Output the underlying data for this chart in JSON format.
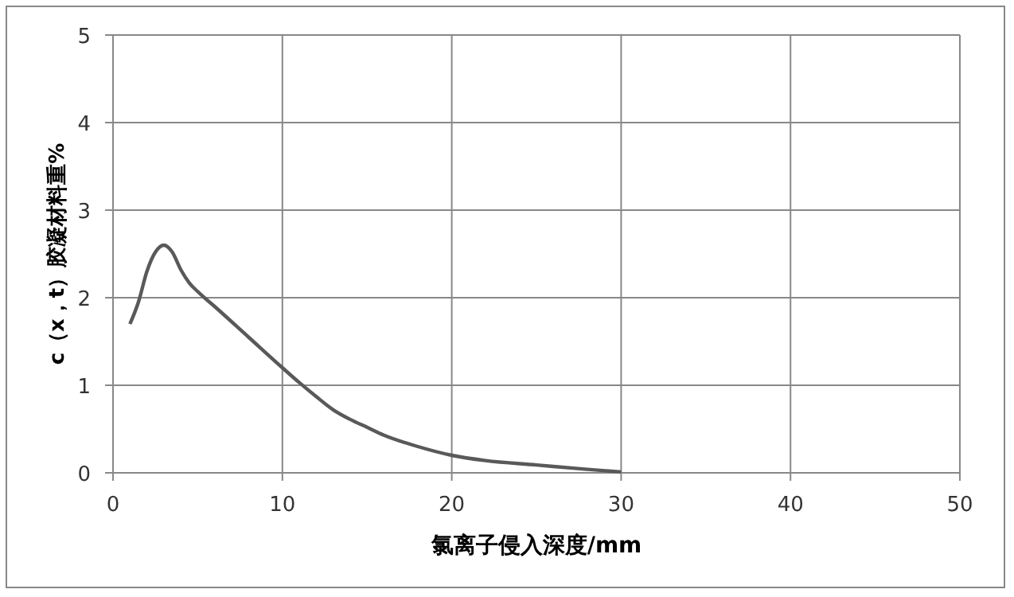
{
  "chart_data": {
    "type": "line",
    "xlabel": "氯离子侵入深度/mm",
    "ylabel": "c（x，t）胶凝材料重%",
    "x": [
      1,
      1.5,
      2,
      2.5,
      3,
      3.5,
      4,
      4.5,
      5,
      6,
      8,
      10,
      11,
      12,
      13,
      14,
      15,
      16,
      18,
      20,
      22,
      25,
      28,
      30
    ],
    "series": [
      {
        "color": "#595959",
        "values": [
          1.7,
          1.95,
          2.3,
          2.52,
          2.6,
          2.52,
          2.32,
          2.17,
          2.07,
          1.9,
          1.55,
          1.2,
          1.03,
          0.87,
          0.72,
          0.61,
          0.52,
          0.43,
          0.3,
          0.2,
          0.14,
          0.09,
          0.04,
          0.01
        ]
      }
    ],
    "xlim": [
      0,
      50
    ],
    "xticks": [
      0,
      10,
      20,
      30,
      40,
      50
    ],
    "ylim": [
      0,
      5
    ],
    "yticks": [
      0,
      1,
      2,
      3,
      4,
      5
    ],
    "grid": true,
    "marker": "none",
    "line_style": "solid"
  }
}
